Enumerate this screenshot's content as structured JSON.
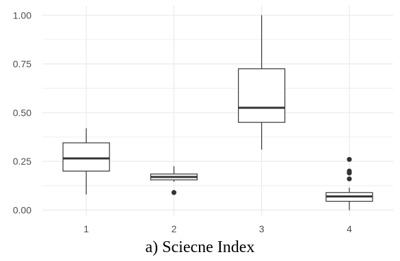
{
  "caption": "a) Sciecne Index",
  "chart_data": {
    "type": "boxplot",
    "title": "",
    "xlabel": "",
    "ylabel": "",
    "categories": [
      "1",
      "2",
      "3",
      "4"
    ],
    "ylim": [
      -0.03,
      1.05
    ],
    "y_ticks": [
      0.0,
      0.25,
      0.5,
      0.75,
      1.0
    ],
    "y_tick_labels": [
      "0.00",
      "0.25",
      "0.50",
      "0.75",
      "1.00"
    ],
    "grid": true,
    "boxes": [
      {
        "category": "1",
        "whisker_low": 0.08,
        "q1": 0.2,
        "median": 0.265,
        "q3": 0.345,
        "whisker_high": 0.42,
        "outliers": []
      },
      {
        "category": "2",
        "whisker_low": 0.145,
        "q1": 0.155,
        "median": 0.17,
        "q3": 0.185,
        "whisker_high": 0.225,
        "outliers": [
          0.09
        ]
      },
      {
        "category": "3",
        "whisker_low": 0.31,
        "q1": 0.45,
        "median": 0.525,
        "q3": 0.725,
        "whisker_high": 1.0,
        "outliers": []
      },
      {
        "category": "4",
        "whisker_low": 0.0,
        "q1": 0.045,
        "median": 0.07,
        "q3": 0.09,
        "whisker_high": 0.115,
        "outliers": [
          0.16,
          0.19,
          0.2,
          0.26
        ]
      }
    ],
    "colors": {
      "box_fill": "#ffffff",
      "box_stroke": "#333333",
      "grid": "#ebebeb",
      "outlier": "#333333"
    }
  }
}
